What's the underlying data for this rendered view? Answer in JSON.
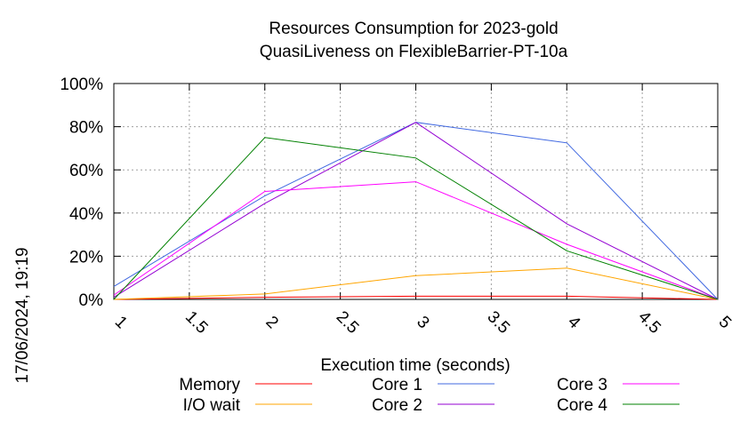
{
  "chart_data": {
    "type": "line",
    "title": "Resources Consumption for 2023-gold",
    "subtitle": "QuasiLiveness on FlexibleBarrier-PT-10a",
    "xlabel": "Execution time (seconds)",
    "ylabel": "",
    "timestamp": "17/06/2024, 19:19",
    "xlim": [
      1,
      5
    ],
    "ylim": [
      0,
      100
    ],
    "x_ticks": [
      "1",
      "1.5",
      "2",
      "2.5",
      "3",
      "3.5",
      "4",
      "4.5",
      "5"
    ],
    "y_ticks": [
      "0%",
      "20%",
      "40%",
      "60%",
      "80%",
      "100%"
    ],
    "grid": true,
    "legend_position": "bottom",
    "x": [
      1,
      2,
      3,
      4,
      5
    ],
    "series": [
      {
        "name": "Memory",
        "color": "#ff0000",
        "values": [
          0,
          1,
          1.5,
          1.5,
          0
        ]
      },
      {
        "name": "I/O wait",
        "color": "#ffa500",
        "values": [
          0,
          2.5,
          11,
          14.5,
          0
        ]
      },
      {
        "name": "Core 1",
        "color": "#4169e1",
        "values": [
          6,
          48,
          82,
          72.5,
          0
        ]
      },
      {
        "name": "Core 2",
        "color": "#9400d3",
        "values": [
          1,
          44.5,
          82,
          35,
          0
        ]
      },
      {
        "name": "Core 3",
        "color": "#ff00ff",
        "values": [
          2,
          50,
          54.5,
          25.5,
          0
        ]
      },
      {
        "name": "Core 4",
        "color": "#008000",
        "values": [
          0,
          75,
          65.5,
          22.5,
          0
        ]
      }
    ]
  }
}
